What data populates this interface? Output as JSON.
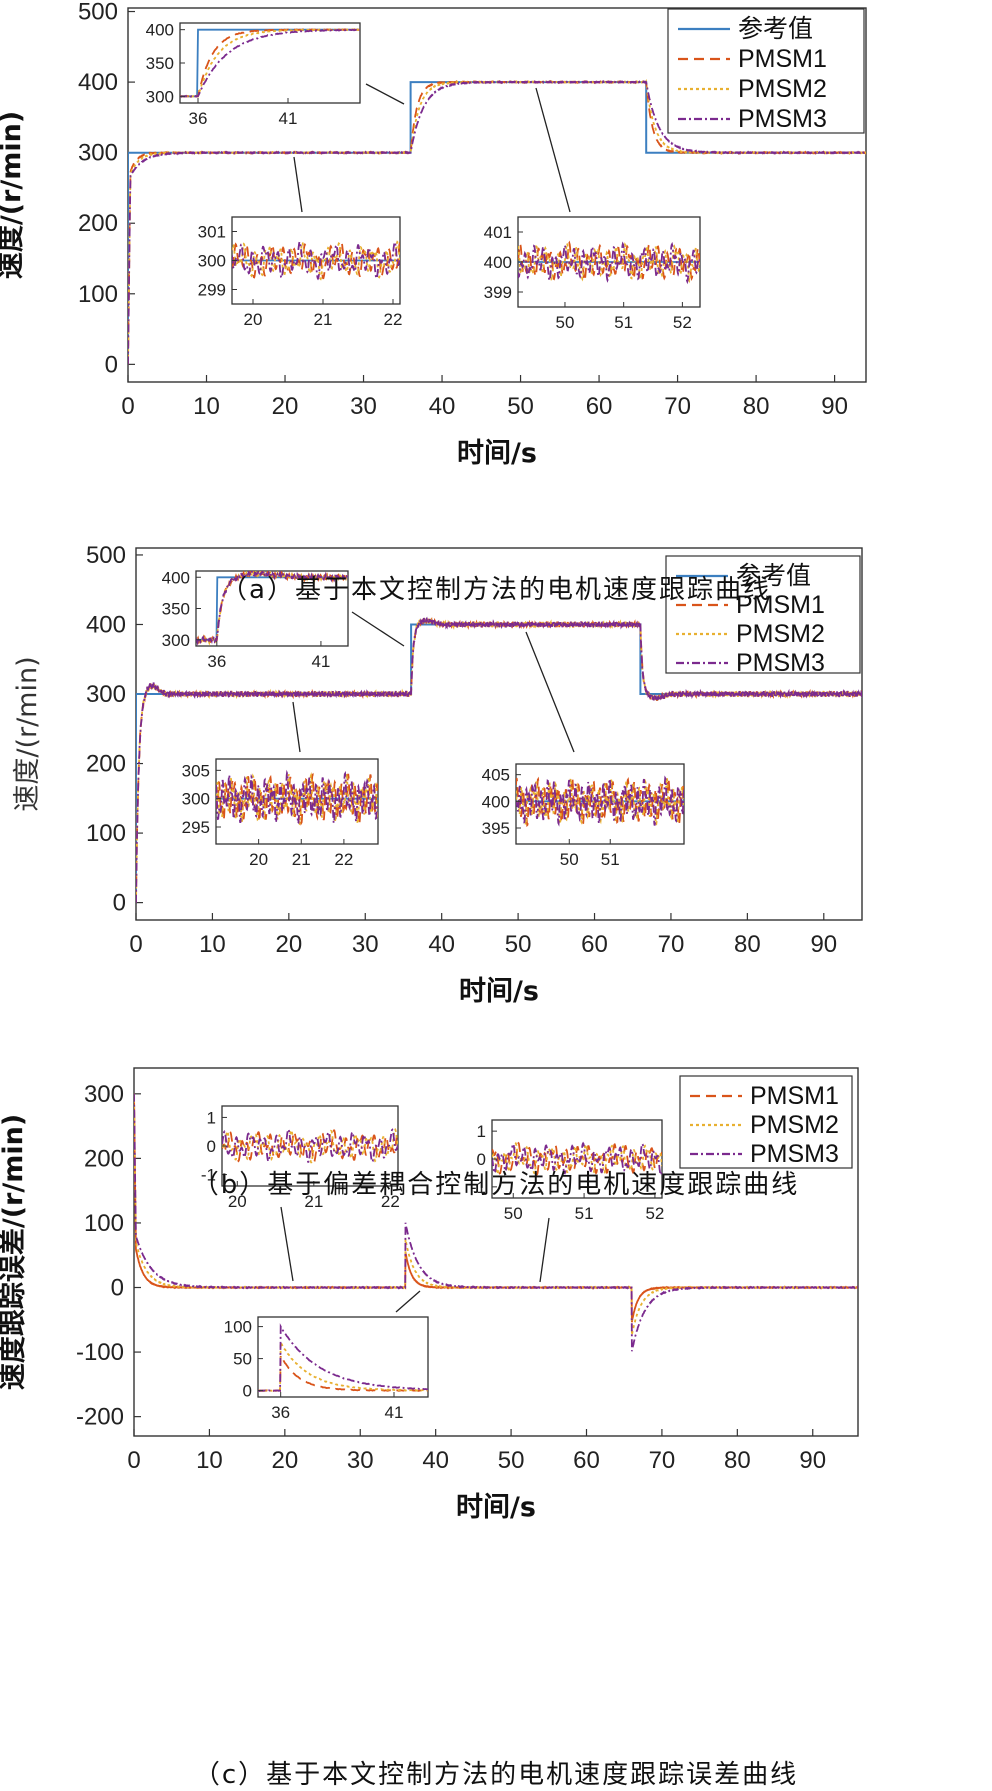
{
  "colors": {
    "ref": "#3c7fc0",
    "pmsm1": "#d9541a",
    "pmsm2": "#e8b030",
    "pmsm3": "#7b2a8e"
  },
  "chart_data": [
    {
      "id": "a",
      "type": "line",
      "caption": "（a）基于本文控制方法的电机速度跟踪曲线",
      "xlabel": "时间/s",
      "ylabel": "速度/(r/min)",
      "xlim": [
        0,
        94
      ],
      "ylim": [
        -25,
        505
      ],
      "xticks": [
        0,
        10,
        20,
        30,
        40,
        50,
        60,
        70,
        80,
        90
      ],
      "yticks": [
        0,
        100,
        200,
        300,
        400,
        500
      ],
      "legend": {
        "position": "top-right",
        "entries": [
          "参考值",
          "PMSM1",
          "PMSM2",
          "PMSM3"
        ]
      },
      "reference": {
        "name": "参考值",
        "x": [
          0,
          0,
          36,
          36,
          66,
          66,
          94
        ],
        "y": [
          0,
          300,
          300,
          400,
          400,
          300,
          300
        ]
      },
      "series": [
        {
          "name": "PMSM1",
          "tau": 0.8,
          "x": [
            0,
            36,
            66,
            94
          ],
          "y": [
            0,
            300,
            400,
            300
          ]
        },
        {
          "name": "PMSM2",
          "tau": 1.1,
          "x": [
            0,
            36,
            66,
            94
          ],
          "y": [
            0,
            300,
            400,
            300
          ]
        },
        {
          "name": "PMSM3",
          "tau": 1.6,
          "x": [
            0,
            36,
            66,
            94
          ],
          "y": [
            0,
            300,
            400,
            300
          ]
        }
      ],
      "insets": [
        {
          "xticks": [
            36,
            41
          ],
          "yticks": [
            300,
            350,
            400
          ],
          "xlim": [
            35,
            45
          ],
          "ylim": [
            290,
            410
          ]
        },
        {
          "xticks": [
            20,
            21,
            22
          ],
          "yticks": [
            299,
            300,
            301
          ],
          "xlim": [
            19.7,
            22.1
          ],
          "ylim": [
            298.5,
            301.5
          ]
        },
        {
          "xticks": [
            50,
            51,
            52
          ],
          "yticks": [
            399,
            400,
            401
          ],
          "xlim": [
            49.2,
            52.3
          ],
          "ylim": [
            398.5,
            401.5
          ]
        }
      ]
    },
    {
      "id": "b",
      "type": "line",
      "caption": "（b）基于偏差耦合控制方法的电机速度跟踪曲线",
      "xlabel": "时间/s",
      "ylabel": "速度/(r/min)",
      "xlim": [
        0,
        95
      ],
      "ylim": [
        -25,
        510
      ],
      "xticks": [
        0,
        10,
        20,
        30,
        40,
        50,
        60,
        70,
        80,
        90
      ],
      "yticks": [
        0,
        100,
        200,
        300,
        400,
        500
      ],
      "legend": {
        "position": "top-right",
        "entries": [
          "参考值",
          "PMSM1",
          "PMSM2",
          "PMSM3"
        ]
      },
      "reference": {
        "name": "参考值",
        "x": [
          0,
          0,
          36,
          36,
          66,
          66,
          95
        ],
        "y": [
          0,
          300,
          300,
          400,
          400,
          300,
          300
        ]
      },
      "series": [
        {
          "name": "PMSM1",
          "overshoot": 13,
          "x": [
            0,
            36,
            66,
            95
          ],
          "y": [
            0,
            300,
            400,
            300
          ]
        },
        {
          "name": "PMSM2",
          "overshoot": 12,
          "x": [
            0,
            36,
            66,
            95
          ],
          "y": [
            0,
            300,
            400,
            300
          ]
        },
        {
          "name": "PMSM3",
          "overshoot": 14,
          "x": [
            0,
            36,
            66,
            95
          ],
          "y": [
            0,
            300,
            400,
            300
          ]
        }
      ],
      "insets": [
        {
          "xticks": [
            36,
            41
          ],
          "yticks": [
            300,
            350,
            400
          ],
          "xlim": [
            35,
            42.3
          ],
          "ylim": [
            290,
            410
          ]
        },
        {
          "xticks": [
            20,
            21,
            22
          ],
          "yticks": [
            295,
            300,
            305
          ],
          "xlim": [
            19,
            22.8
          ],
          "ylim": [
            292,
            307
          ]
        },
        {
          "xticks": [
            50,
            51
          ],
          "yticks": [
            395,
            400,
            405
          ],
          "xlim": [
            48.7,
            52.8
          ],
          "ylim": [
            392,
            407
          ]
        }
      ]
    },
    {
      "id": "c",
      "type": "line",
      "caption": "（c）基于本文控制方法的电机速度跟踪误差曲线",
      "xlabel": "时间/s",
      "ylabel": "速度跟踪误差/(r/min)",
      "xlim": [
        0,
        96
      ],
      "ylim": [
        -230,
        340
      ],
      "xticks": [
        0,
        10,
        20,
        30,
        40,
        50,
        60,
        70,
        80,
        90
      ],
      "yticks": [
        -200,
        -100,
        0,
        100,
        200,
        300
      ],
      "legend": {
        "position": "top-right",
        "entries": [
          "PMSM1",
          "PMSM2",
          "PMSM3"
        ]
      },
      "series": [
        {
          "name": "PMSM1",
          "peak0": 60,
          "peak36": 55,
          "tau": 0.8,
          "x": [
            0,
            36,
            66
          ],
          "y": [
            300,
            100,
            -100
          ]
        },
        {
          "name": "PMSM2",
          "peak0": 70,
          "peak36": 75,
          "tau": 1.2,
          "x": [
            0,
            36,
            66
          ],
          "y": [
            300,
            100,
            -100
          ]
        },
        {
          "name": "PMSM3",
          "peak0": 80,
          "peak36": 100,
          "tau": 1.7,
          "x": [
            0,
            36,
            66
          ],
          "y": [
            300,
            100,
            -100
          ]
        }
      ],
      "insets": [
        {
          "xticks": [
            20,
            21,
            22
          ],
          "yticks": [
            -1,
            0,
            1
          ],
          "xlim": [
            19.8,
            22.1
          ],
          "ylim": [
            -1.4,
            1.4
          ]
        },
        {
          "xticks": [
            50,
            51,
            52
          ],
          "yticks": [
            -1,
            0,
            1
          ],
          "xlim": [
            49.7,
            52.1
          ],
          "ylim": [
            -1.4,
            1.4
          ]
        },
        {
          "xticks": [
            36,
            41
          ],
          "yticks": [
            0,
            50,
            100
          ],
          "xlim": [
            35,
            42.5
          ],
          "ylim": [
            -10,
            115
          ]
        }
      ]
    }
  ]
}
